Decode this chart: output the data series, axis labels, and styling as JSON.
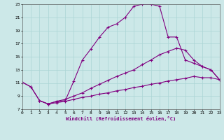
{
  "xlabel": "Windchill (Refroidissement éolien,°C)",
  "bg_color": "#cce8e8",
  "line_color": "#800080",
  "grid_color": "#aad4d4",
  "xlim": [
    0,
    23
  ],
  "ylim": [
    7,
    23
  ],
  "yticks": [
    7,
    9,
    11,
    13,
    15,
    17,
    19,
    21,
    23
  ],
  "xticks": [
    0,
    1,
    2,
    3,
    4,
    5,
    6,
    7,
    8,
    9,
    10,
    11,
    12,
    13,
    14,
    15,
    16,
    17,
    18,
    19,
    20,
    21,
    22,
    23
  ],
  "line1_x": [
    0,
    1,
    2,
    3,
    4,
    5,
    6,
    7,
    8,
    9,
    10,
    11,
    12,
    13,
    14,
    15,
    16,
    17,
    18,
    19,
    20,
    21,
    22,
    23
  ],
  "line1_y": [
    11.1,
    10.4,
    8.3,
    7.8,
    8.2,
    8.3,
    11.3,
    14.5,
    16.2,
    18.0,
    19.5,
    20.0,
    21.0,
    22.7,
    23.0,
    23.0,
    22.7,
    18.0,
    18.0,
    14.5,
    14.0,
    13.5,
    13.0,
    11.5
  ],
  "line2_x": [
    0,
    1,
    2,
    3,
    4,
    5,
    6,
    7,
    8,
    9,
    10,
    11,
    12,
    13,
    14,
    15,
    16,
    17,
    18,
    19,
    20,
    21,
    22,
    23
  ],
  "line2_y": [
    11.1,
    10.4,
    8.3,
    7.8,
    8.2,
    8.5,
    9.0,
    9.5,
    10.2,
    10.8,
    11.4,
    12.0,
    12.5,
    13.0,
    13.8,
    14.5,
    15.3,
    15.8,
    16.3,
    16.0,
    14.5,
    13.5,
    13.0,
    11.5
  ],
  "line3_x": [
    2,
    3,
    4,
    5,
    6,
    7,
    8,
    9,
    10,
    11,
    12,
    13,
    14,
    15,
    16,
    17,
    18,
    19,
    20,
    21,
    22,
    23
  ],
  "line3_y": [
    8.3,
    7.8,
    8.0,
    8.2,
    8.5,
    8.8,
    9.0,
    9.3,
    9.5,
    9.8,
    10.0,
    10.3,
    10.5,
    10.8,
    11.0,
    11.3,
    11.5,
    11.7,
    12.0,
    11.8,
    11.8,
    11.5
  ]
}
